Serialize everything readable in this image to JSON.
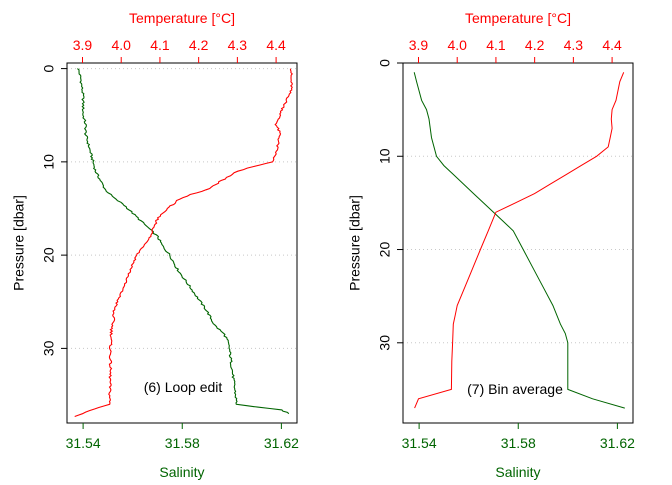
{
  "colors": {
    "salinity": "#006400",
    "temperature": "#ff0000",
    "grid": "#c8c8c8",
    "axis": "#000000"
  },
  "chart_data": [
    {
      "type": "line",
      "annotation": "(6) Loop edit",
      "ylabel": "Pressure [dbar]",
      "y_reversed": true,
      "ylim": [
        38.0,
        -0.6
      ],
      "y_ticks": [
        0,
        10,
        20,
        30
      ],
      "x_bottom_label": "Salinity",
      "x_bottom_lim": [
        31.5335,
        31.6263
      ],
      "x_bottom_ticks": [
        "31.54",
        "31.58",
        "31.62"
      ],
      "x_top_label": "Temperature [°C]",
      "x_top_lim": [
        3.86,
        4.454
      ],
      "x_top_ticks": [
        "3.9",
        "4.0",
        "4.1",
        "4.2",
        "4.3",
        "4.4"
      ],
      "grid": "horizontal-dotted",
      "series": [
        {
          "name": "Salinity",
          "axis": "bottom",
          "style": "jagged",
          "x": [
            31.538,
            31.539,
            31.54,
            31.54,
            31.541,
            31.541,
            31.542,
            31.543,
            31.544,
            31.545,
            31.547,
            31.549,
            31.551,
            31.553,
            31.556,
            31.558,
            31.56,
            31.562,
            31.564,
            31.566,
            31.568,
            31.57,
            31.572,
            31.575,
            31.578,
            31.582,
            31.586,
            31.59,
            31.593,
            31.595,
            31.597,
            31.598,
            31.599,
            31.6,
            31.601,
            31.602,
            31.61,
            31.62,
            31.623
          ],
          "y": [
            0.0,
            1.0,
            3.0,
            5.0,
            6.0,
            7.0,
            8.0,
            9.0,
            10.0,
            11.0,
            12.0,
            13.0,
            13.5,
            14.0,
            14.5,
            15.0,
            15.5,
            16.0,
            16.5,
            17.0,
            17.5,
            18.0,
            19.0,
            20.0,
            21.5,
            23.0,
            24.5,
            26.0,
            27.5,
            28.0,
            28.5,
            29.0,
            30.0,
            32.0,
            34.0,
            36.0,
            36.3,
            36.6,
            37.0
          ]
        },
        {
          "name": "Temperature",
          "axis": "top",
          "style": "jagged",
          "x": [
            4.44,
            4.438,
            4.44,
            4.432,
            4.42,
            4.41,
            4.4,
            4.41,
            4.405,
            4.4,
            4.39,
            4.34,
            4.3,
            4.28,
            4.26,
            4.22,
            4.18,
            4.15,
            4.12,
            4.105,
            4.095,
            4.085,
            4.075,
            4.06,
            4.04,
            4.02,
            4.0,
            3.99,
            3.98,
            3.98,
            3.975,
            3.974,
            3.972,
            3.972,
            3.971,
            3.97,
            3.93,
            3.9,
            3.88
          ],
          "y": [
            0.0,
            1.0,
            2.0,
            3.0,
            4.0,
            5.0,
            6.0,
            7.0,
            8.0,
            9.0,
            10.0,
            10.5,
            11.0,
            11.5,
            12.0,
            13.0,
            13.5,
            14.0,
            15.0,
            15.5,
            16.0,
            17.0,
            18.0,
            19.0,
            20.0,
            22.0,
            24.0,
            25.0,
            26.0,
            27.0,
            28.0,
            29.0,
            30.0,
            32.0,
            34.0,
            36.0,
            36.5,
            37.0,
            37.3
          ]
        }
      ]
    },
    {
      "type": "line",
      "annotation": "(7) Bin average",
      "ylabel": "Pressure [dbar]",
      "y_reversed": true,
      "ylim": [
        38.6,
        0.0
      ],
      "y_ticks": [
        0,
        10,
        20,
        30
      ],
      "x_bottom_label": "Salinity",
      "x_bottom_lim": [
        31.5335,
        31.6263
      ],
      "x_bottom_ticks": [
        "31.54",
        "31.58",
        "31.62"
      ],
      "x_top_label": "Temperature [°C]",
      "x_top_lim": [
        3.86,
        4.454
      ],
      "x_top_ticks": [
        "3.9",
        "4.0",
        "4.1",
        "4.2",
        "4.3",
        "4.4"
      ],
      "grid": "horizontal-dotted",
      "series": [
        {
          "name": "Salinity",
          "axis": "bottom",
          "style": "smooth",
          "x": [
            31.538,
            31.539,
            31.54,
            31.541,
            31.543,
            31.544,
            31.545,
            31.547,
            31.55,
            31.554,
            31.558,
            31.562,
            31.566,
            31.57,
            31.574,
            31.578,
            31.582,
            31.586,
            31.59,
            31.594,
            31.597,
            31.599,
            31.6,
            31.6,
            31.6,
            31.61,
            31.623
          ],
          "y": [
            1.0,
            2.0,
            3.0,
            4.0,
            5.0,
            6.0,
            8.0,
            10.0,
            11.0,
            12.0,
            13.0,
            14.0,
            15.0,
            16.0,
            17.0,
            18.0,
            20.0,
            22.0,
            24.0,
            26.0,
            28.0,
            29.0,
            30.0,
            32.0,
            35.0,
            36.0,
            37.0
          ]
        },
        {
          "name": "Temperature",
          "axis": "top",
          "style": "smooth",
          "x": [
            4.43,
            4.42,
            4.41,
            4.4,
            4.398,
            4.4,
            4.395,
            4.39,
            4.36,
            4.32,
            4.28,
            4.24,
            4.2,
            4.15,
            4.1,
            4.08,
            4.06,
            4.04,
            4.02,
            4.0,
            3.995,
            3.99,
            3.988,
            3.986,
            3.985,
            3.9,
            3.89
          ],
          "y": [
            1.0,
            2.0,
            4.0,
            5.0,
            6.0,
            7.0,
            8.0,
            9.0,
            10.0,
            11.0,
            12.0,
            13.0,
            14.0,
            15.0,
            16.0,
            18.0,
            20.0,
            22.0,
            24.0,
            26.0,
            27.0,
            28.0,
            30.0,
            32.0,
            35.0,
            36.0,
            37.0
          ]
        }
      ]
    }
  ]
}
